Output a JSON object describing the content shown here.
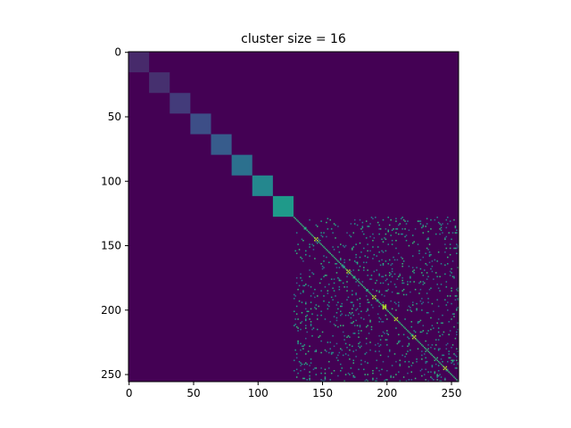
{
  "chart_data": {
    "type": "heatmap",
    "title": "cluster size = 16",
    "xlabel": "",
    "ylabel": "",
    "n": 256,
    "xlim": [
      0,
      255
    ],
    "ylim": [
      255,
      0
    ],
    "x_ticks": [
      0,
      50,
      100,
      150,
      200,
      250
    ],
    "y_ticks": [
      0,
      50,
      100,
      150,
      200,
      250
    ],
    "grid": false,
    "colormap": "viridis",
    "background_color": "#440154",
    "diagonal_blocks": [
      {
        "start": 0,
        "size": 16,
        "color": "#472a6b"
      },
      {
        "start": 16,
        "size": 16,
        "color": "#46306f"
      },
      {
        "start": 32,
        "size": 16,
        "color": "#433b7a"
      },
      {
        "start": 48,
        "size": 16,
        "color": "#3d4e87"
      },
      {
        "start": 64,
        "size": 16,
        "color": "#375c8c"
      },
      {
        "start": 80,
        "size": 16,
        "color": "#2c708e"
      },
      {
        "start": 96,
        "size": 16,
        "color": "#24878e"
      },
      {
        "start": 112,
        "size": 16,
        "color": "#1f9a8a"
      }
    ],
    "sparse_region": {
      "start": 128,
      "end": 256,
      "cell_colors": [
        "#31688e",
        "#26828e",
        "#1fa187",
        "#35b779"
      ],
      "highlight_color": "#b5de2b",
      "diagonal_color": "#35b779",
      "highlights": [
        [
          145,
          145
        ],
        [
          170,
          170
        ],
        [
          190,
          190
        ],
        [
          198,
          198
        ],
        [
          207,
          207
        ],
        [
          221,
          221
        ],
        [
          245,
          245
        ],
        [
          197,
          198
        ]
      ]
    }
  }
}
